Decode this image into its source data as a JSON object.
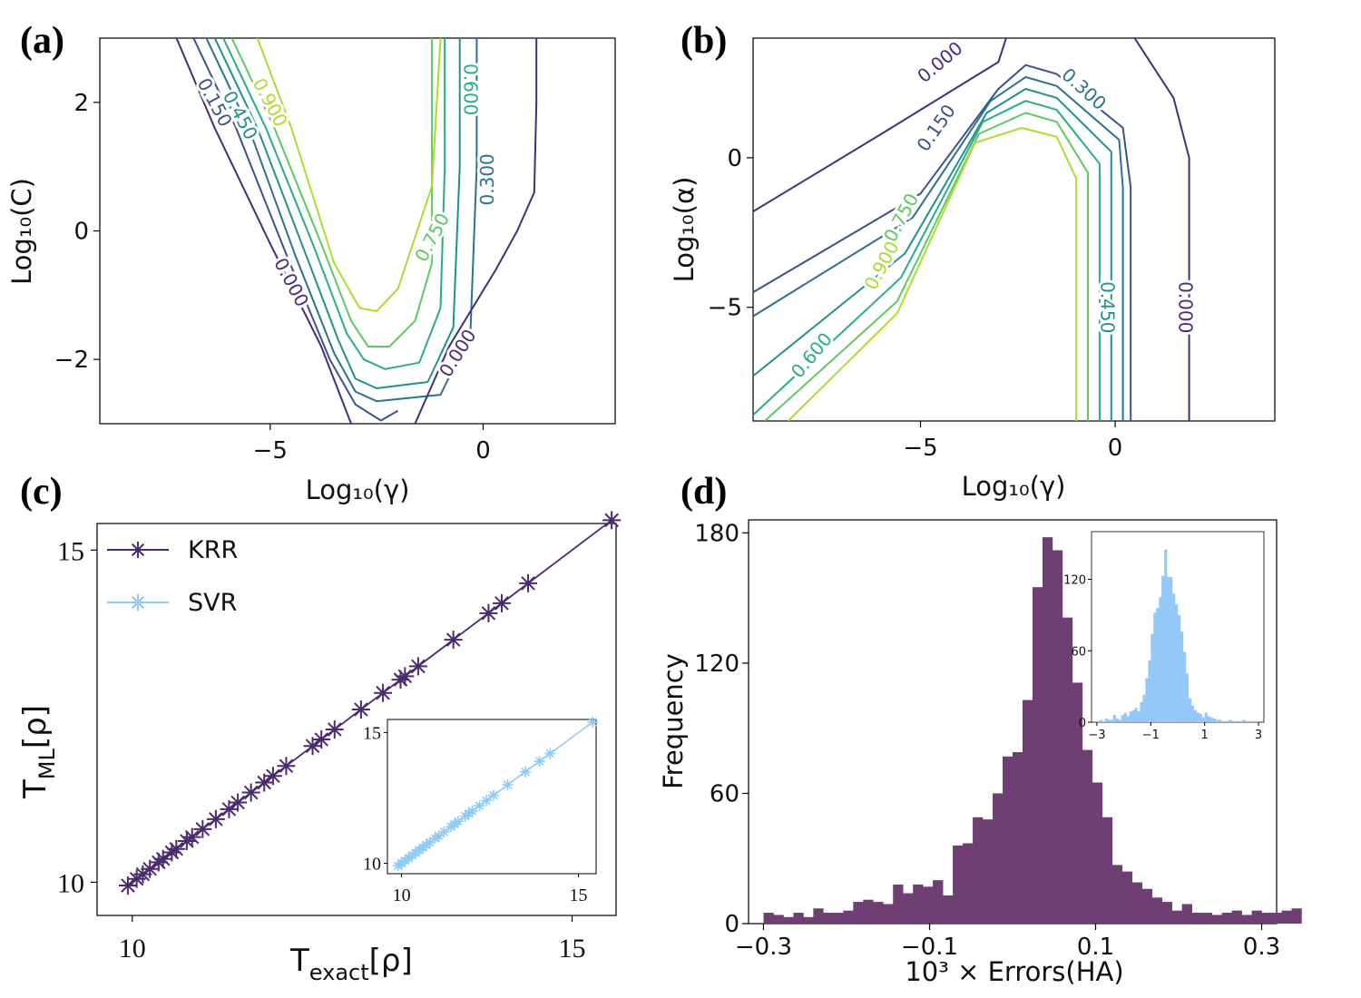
{
  "panels": {
    "a": {
      "label": "(a)"
    },
    "b": {
      "label": "(b)"
    },
    "c": {
      "label": "(c)"
    },
    "d": {
      "label": "(d)"
    }
  },
  "colors": {
    "levels": [
      "#472d7b",
      "#3b528b",
      "#2c728e",
      "#21918c",
      "#28ae80",
      "#5ec962",
      "#addc30"
    ],
    "krr": "#4b2a6e",
    "svr": "#8ecbf6",
    "hist_main": "#6f3f74",
    "hist_inset": "#94c8f8"
  },
  "chart_data": [
    {
      "panel": "a",
      "type": "contour",
      "xlabel": "Log₁₀(γ)",
      "ylabel": "Log₁₀(C)",
      "xlim": [
        -9,
        3.1
      ],
      "ylim": [
        -3,
        3
      ],
      "xticks": [
        {
          "v": -5,
          "t": "−5"
        },
        {
          "v": 0,
          "t": "0"
        }
      ],
      "yticks": [
        {
          "v": -2,
          "t": "−2"
        },
        {
          "v": 0,
          "t": "0"
        },
        {
          "v": 2,
          "t": "2"
        }
      ],
      "levels": [
        {
          "level": "0.000",
          "path": [
            [
              -7.2,
              3.0
            ],
            [
              -6.3,
              1.6
            ],
            [
              -5.0,
              -0.2
            ],
            [
              -3.8,
              -1.8
            ],
            [
              -3.1,
              -3.0
            ]
          ]
        },
        {
          "level": "0.150",
          "path": [
            [
              -6.8,
              3.0
            ],
            [
              -5.8,
              1.6
            ],
            [
              -4.6,
              -0.4
            ],
            [
              -3.6,
              -2.0
            ],
            [
              -3.0,
              -2.7
            ],
            [
              -2.4,
              -2.95
            ],
            [
              -2.0,
              -2.8
            ]
          ]
        },
        {
          "level": "0.300",
          "path": [
            [
              -6.5,
              3.0
            ],
            [
              -5.5,
              1.6
            ],
            [
              -4.4,
              -0.4
            ],
            [
              -3.5,
              -1.9
            ],
            [
              -3.0,
              -2.5
            ],
            [
              -2.5,
              -2.65
            ],
            [
              -1.0,
              -2.55
            ],
            [
              -0.3,
              -1.6
            ],
            [
              -0.15,
              1.0
            ],
            [
              -0.15,
              3.0
            ]
          ]
        },
        {
          "level": "0.450",
          "path": [
            [
              -6.3,
              3.0
            ],
            [
              -5.3,
              1.6
            ],
            [
              -4.2,
              -0.3
            ],
            [
              -3.4,
              -1.7
            ],
            [
              -3.0,
              -2.3
            ],
            [
              -2.5,
              -2.45
            ],
            [
              -1.3,
              -2.35
            ],
            [
              -0.7,
              -1.5
            ],
            [
              -0.55,
              1.0
            ],
            [
              -0.55,
              3.0
            ]
          ]
        },
        {
          "level": "0.600",
          "path": [
            [
              -6.1,
              3.0
            ],
            [
              -5.1,
              1.6
            ],
            [
              -4.0,
              -0.2
            ],
            [
              -3.2,
              -1.6
            ],
            [
              -2.8,
              -2.0
            ],
            [
              -2.3,
              -2.15
            ],
            [
              -1.5,
              -2.05
            ],
            [
              -1.0,
              -1.2
            ],
            [
              -0.9,
              1.0
            ],
            [
              -0.9,
              3.0
            ]
          ]
        },
        {
          "level": "0.750",
          "path": [
            [
              -5.9,
              3.0
            ],
            [
              -4.9,
              1.6
            ],
            [
              -3.8,
              -0.2
            ],
            [
              -3.1,
              -1.4
            ],
            [
              -2.7,
              -1.8
            ],
            [
              -2.2,
              -1.8
            ],
            [
              -1.6,
              -1.4
            ],
            [
              -1.2,
              -0.5
            ],
            [
              -1.2,
              1.0
            ],
            [
              -1.2,
              3.0
            ]
          ]
        },
        {
          "level": "0.900",
          "path": [
            [
              -5.3,
              3.0
            ],
            [
              -4.5,
              1.6
            ],
            [
              -3.5,
              -0.5
            ],
            [
              -2.9,
              -1.2
            ],
            [
              -2.5,
              -1.25
            ],
            [
              -2.0,
              -0.9
            ],
            [
              -1.2,
              0.7
            ],
            [
              -1.0,
              3.0
            ]
          ]
        }
      ],
      "outer_zero": {
        "level": "0.000",
        "path": [
          [
            -1.6,
            -3.0
          ],
          [
            -0.8,
            -1.8
          ],
          [
            0.3,
            -0.6
          ],
          [
            0.8,
            0.0
          ],
          [
            1.2,
            0.6
          ],
          [
            1.25,
            2.0
          ],
          [
            1.25,
            3.0
          ]
        ]
      },
      "label_marks": [
        {
          "text": "0.150",
          "x": -6.3,
          "y": 2.0,
          "angle": 62,
          "level": 1
        },
        {
          "text": "0.450",
          "x": -5.7,
          "y": 1.8,
          "angle": 62,
          "level": 3
        },
        {
          "text": "0.900",
          "x": -5.0,
          "y": 2.0,
          "angle": 62,
          "level": 6
        },
        {
          "text": "0.000",
          "x": -4.5,
          "y": -0.8,
          "angle": 62,
          "level": 0
        },
        {
          "text": "0.750",
          "x": -1.2,
          "y": -0.1,
          "angle": -62,
          "level": 5
        },
        {
          "text": "0.600",
          "x": -0.3,
          "y": 2.2,
          "angle": 90,
          "level": 4
        },
        {
          "text": "0.300",
          "x": 0.1,
          "y": 0.8,
          "angle": -90,
          "level": 2
        },
        {
          "text": "0.000",
          "x": -0.6,
          "y": -1.9,
          "angle": -58,
          "level": 0
        }
      ]
    },
    {
      "panel": "b",
      "type": "contour",
      "xlabel": "Log₁₀(γ)",
      "ylabel": "Log₁₀(α)",
      "xlim": [
        -9.3,
        4.1
      ],
      "ylim": [
        -8.8,
        4.0
      ],
      "xticks": [
        {
          "v": -5,
          "t": "−5"
        },
        {
          "v": 0,
          "t": "0"
        }
      ],
      "yticks": [
        {
          "v": -5,
          "t": "−5"
        },
        {
          "v": 0,
          "t": "0"
        }
      ],
      "levels": [
        {
          "level": "0.000",
          "path": [
            [
              -9.3,
              -1.8
            ],
            [
              -6.0,
              0.8
            ],
            [
              -3.0,
              3.2
            ],
            [
              -2.8,
              4.0
            ]
          ]
        },
        {
          "level": "0.150",
          "path": [
            [
              -9.3,
              -4.5
            ],
            [
              -5.0,
              -1.2
            ],
            [
              -3.0,
              2.3
            ],
            [
              -2.3,
              3.1
            ],
            [
              -1.5,
              2.8
            ],
            [
              0.2,
              1.0
            ],
            [
              0.4,
              -1.0
            ],
            [
              0.4,
              -8.8
            ]
          ]
        },
        {
          "level": "0.300",
          "path": [
            [
              -9.3,
              -5.3
            ],
            [
              -5.2,
              -2.0
            ],
            [
              -3.2,
              1.9
            ],
            [
              -2.3,
              2.7
            ],
            [
              -1.5,
              2.4
            ],
            [
              0.1,
              0.6
            ],
            [
              0.2,
              -1.0
            ],
            [
              0.2,
              -8.8
            ]
          ]
        },
        {
          "level": "0.450",
          "path": [
            [
              -9.3,
              -7.3
            ],
            [
              -5.4,
              -3.2
            ],
            [
              -3.3,
              1.5
            ],
            [
              -2.3,
              2.3
            ],
            [
              -1.5,
              2.0
            ],
            [
              -0.1,
              0.2
            ],
            [
              -0.1,
              -1.0
            ],
            [
              -0.1,
              -8.8
            ]
          ]
        },
        {
          "level": "0.600",
          "path": [
            [
              -9.3,
              -8.6
            ],
            [
              -5.5,
              -4.0
            ],
            [
              -3.4,
              1.2
            ],
            [
              -2.3,
              1.9
            ],
            [
              -1.5,
              1.6
            ],
            [
              -0.4,
              -0.2
            ],
            [
              -0.4,
              -1.0
            ],
            [
              -0.4,
              -8.8
            ]
          ]
        },
        {
          "level": "0.750",
          "path": [
            [
              -9.0,
              -8.8
            ],
            [
              -5.6,
              -4.8
            ],
            [
              -3.5,
              0.8
            ],
            [
              -2.3,
              1.5
            ],
            [
              -1.5,
              1.2
            ],
            [
              -0.7,
              -0.5
            ],
            [
              -0.7,
              -8.8
            ]
          ]
        },
        {
          "level": "0.900",
          "path": [
            [
              -8.4,
              -8.8
            ],
            [
              -5.6,
              -5.2
            ],
            [
              -3.6,
              0.5
            ],
            [
              -2.4,
              1.0
            ],
            [
              -1.5,
              0.7
            ],
            [
              -1.0,
              -0.7
            ],
            [
              -1.0,
              -8.8
            ]
          ]
        }
      ],
      "outer_zero": {
        "level": "0.000",
        "path": [
          [
            0.5,
            4.0
          ],
          [
            1.5,
            2.0
          ],
          [
            1.9,
            0.0
          ],
          [
            1.9,
            -8.8
          ]
        ]
      },
      "label_marks": [
        {
          "text": "0.000",
          "x": -4.5,
          "y": 3.2,
          "angle": -40,
          "level": 0
        },
        {
          "text": "0.150",
          "x": -4.6,
          "y": 1.0,
          "angle": -55,
          "level": 1
        },
        {
          "text": "0.300",
          "x": -0.8,
          "y": 2.3,
          "angle": 42,
          "level": 2
        },
        {
          "text": "0.750",
          "x": -5.5,
          "y": -2.0,
          "angle": -62,
          "level": 5
        },
        {
          "text": "0.900",
          "x": -6.0,
          "y": -3.6,
          "angle": -62,
          "level": 6
        },
        {
          "text": "0.600",
          "x": -7.8,
          "y": -6.6,
          "angle": -50,
          "level": 4
        },
        {
          "text": "0.450",
          "x": -0.2,
          "y": -5.0,
          "angle": 90,
          "level": 3
        },
        {
          "text": "0.000",
          "x": 1.8,
          "y": -5.0,
          "angle": 90,
          "level": 0
        }
      ]
    },
    {
      "panel": "c",
      "type": "line",
      "xlabel": "T",
      "xlabel_sub": "exact",
      "xlabel_tail": "[ρ]",
      "ylabel": "T",
      "ylabel_sub": "ML",
      "ylabel_tail": "[ρ]",
      "xlim": [
        9.6,
        15.5
      ],
      "ylim": [
        9.5,
        15.4
      ],
      "xticks": [
        {
          "v": 10,
          "t": "10"
        },
        {
          "v": 15,
          "t": "15"
        }
      ],
      "yticks": [
        {
          "v": 10,
          "t": "10"
        },
        {
          "v": 15,
          "t": "15"
        }
      ],
      "series": [
        {
          "name": "KRR",
          "x": [
            9.95,
            10.05,
            10.12,
            10.2,
            10.3,
            10.35,
            10.45,
            10.5,
            10.62,
            10.68,
            10.8,
            10.95,
            11.1,
            11.2,
            11.35,
            11.5,
            11.6,
            11.75,
            12.05,
            12.15,
            12.3,
            12.6,
            12.85,
            13.05,
            13.1,
            13.25,
            13.65,
            14.05,
            14.2,
            14.5,
            15.45
          ],
          "y": [
            9.95,
            10.05,
            10.12,
            10.2,
            10.3,
            10.35,
            10.45,
            10.5,
            10.62,
            10.68,
            10.8,
            10.95,
            11.1,
            11.2,
            11.35,
            11.5,
            11.6,
            11.75,
            12.05,
            12.15,
            12.3,
            12.6,
            12.85,
            13.05,
            13.1,
            13.25,
            13.65,
            14.05,
            14.2,
            14.5,
            15.45
          ]
        },
        {
          "name": "SVR"
        }
      ],
      "inset": {
        "xlim": [
          9.6,
          15.5
        ],
        "ylim": [
          9.6,
          15.5
        ],
        "xticks": [
          {
            "v": 10,
            "t": "10"
          },
          {
            "v": 15,
            "t": "15"
          }
        ],
        "yticks": [
          {
            "v": 10,
            "t": "10"
          },
          {
            "v": 15,
            "t": "15"
          }
        ],
        "x": [
          9.9,
          10.0,
          10.1,
          10.2,
          10.3,
          10.4,
          10.5,
          10.6,
          10.7,
          10.8,
          10.95,
          11.05,
          11.2,
          11.4,
          11.5,
          11.6,
          11.8,
          11.9,
          12.0,
          12.2,
          12.4,
          12.6,
          13.0,
          13.5,
          13.9,
          14.2,
          15.4
        ],
        "y": [
          9.9,
          10.0,
          10.1,
          10.2,
          10.3,
          10.4,
          10.5,
          10.6,
          10.7,
          10.8,
          10.95,
          11.05,
          11.2,
          11.4,
          11.5,
          11.6,
          11.8,
          11.9,
          12.0,
          12.2,
          12.4,
          12.6,
          13.0,
          13.5,
          13.9,
          14.2,
          15.4
        ]
      }
    },
    {
      "panel": "d",
      "type": "bar",
      "xlabel": "10³ × Errors(HA)",
      "ylabel": "Frequency",
      "xlim": [
        -0.318,
        0.318
      ],
      "ylim": [
        0,
        186
      ],
      "xticks": [
        {
          "v": -0.3,
          "t": "−0.3"
        },
        {
          "v": -0.1,
          "t": "−0.1"
        },
        {
          "v": 0.1,
          "t": "0.1"
        },
        {
          "v": 0.3,
          "t": "0.3"
        }
      ],
      "yticks": [
        {
          "v": 0,
          "t": "0"
        },
        {
          "v": 60,
          "t": "60"
        },
        {
          "v": 120,
          "t": "120"
        },
        {
          "v": 180,
          "t": "180"
        }
      ],
      "bin_start": -0.3,
      "bin_width": 0.012,
      "values": [
        5,
        4,
        3,
        5,
        3,
        7,
        5,
        5,
        6,
        10,
        11,
        10,
        9,
        18,
        14,
        18,
        17,
        20,
        13,
        36,
        37,
        49,
        48,
        60,
        77,
        79,
        103,
        155,
        178,
        172,
        141,
        111,
        80,
        65,
        49,
        27,
        24,
        19,
        16,
        12,
        10,
        6,
        9,
        5,
        5,
        4,
        5,
        6,
        4,
        6,
        5,
        5,
        6,
        7
      ],
      "inset": {
        "xlim": [
          -3.2,
          3.2
        ],
        "ylim": [
          0,
          160
        ],
        "xticks": [
          {
            "v": -3,
            "t": "−3"
          },
          {
            "v": -1,
            "t": "−1"
          },
          {
            "v": 1,
            "t": "1"
          },
          {
            "v": 3,
            "t": "3"
          }
        ],
        "yticks": [
          {
            "v": 0,
            "t": "0"
          },
          {
            "v": 60,
            "t": "60"
          },
          {
            "v": 120,
            "t": "120"
          }
        ],
        "bin_start": -3.0,
        "bin_width": 0.1,
        "values": [
          1,
          2,
          1,
          3,
          2,
          2,
          6,
          3,
          2,
          6,
          8,
          5,
          9,
          10,
          12,
          9,
          17,
          23,
          37,
          52,
          74,
          92,
          96,
          105,
          123,
          145,
          122,
          122,
          108,
          99,
          90,
          76,
          59,
          41,
          20,
          14,
          10,
          8,
          7,
          4,
          8,
          5,
          4,
          3,
          2,
          2,
          1,
          1,
          1,
          2,
          1,
          1,
          1,
          1,
          2,
          1,
          1,
          1,
          1,
          1
        ]
      }
    }
  ]
}
